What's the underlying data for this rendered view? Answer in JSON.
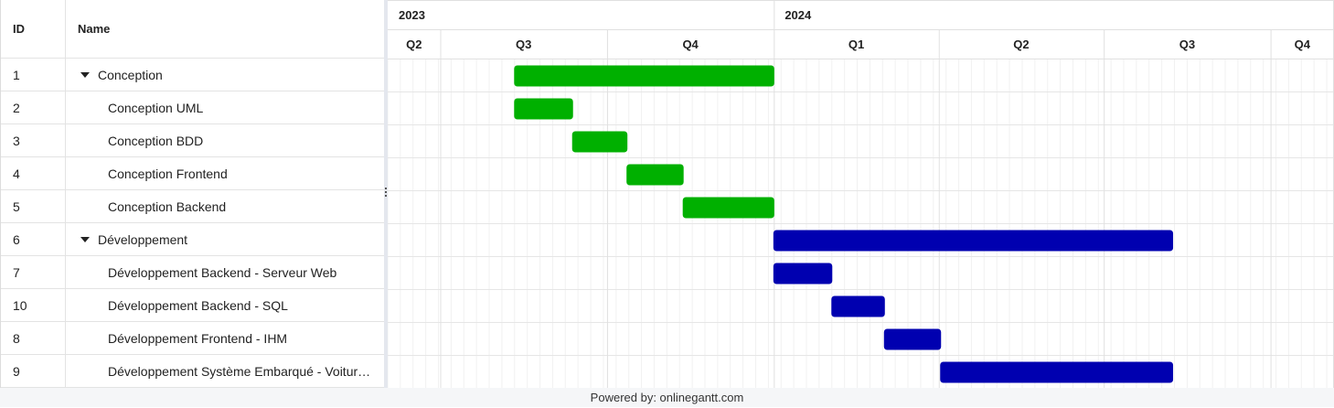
{
  "grid": {
    "columns": {
      "id": "ID",
      "name": "Name"
    },
    "rows": [
      {
        "id": "1",
        "name": "Conception",
        "parent": true
      },
      {
        "id": "2",
        "name": "Conception UML",
        "parent": false
      },
      {
        "id": "3",
        "name": "Conception BDD",
        "parent": false
      },
      {
        "id": "4",
        "name": "Conception Frontend",
        "parent": false
      },
      {
        "id": "5",
        "name": "Conception Backend",
        "parent": false
      },
      {
        "id": "6",
        "name": "Développement",
        "parent": true
      },
      {
        "id": "7",
        "name": "Développement Backend - Serveur Web",
        "parent": false
      },
      {
        "id": "10",
        "name": "Développement Backend - SQL",
        "parent": false
      },
      {
        "id": "8",
        "name": "Développement Frontend - IHM",
        "parent": false
      },
      {
        "id": "9",
        "name": "Développement Système Embarqué - Voitur…",
        "parent": false
      }
    ]
  },
  "timeline": {
    "years": [
      {
        "label": "2023",
        "start": "2023-04-01",
        "end": "2024-01-01"
      },
      {
        "label": "2024",
        "start": "2024-01-01",
        "end": "2024-11-05"
      }
    ],
    "quarters": [
      {
        "label": "Q2",
        "start": "2023-06-02",
        "end": "2023-07-01"
      },
      {
        "label": "Q3",
        "start": "2023-07-01",
        "end": "2023-10-01"
      },
      {
        "label": "Q4",
        "start": "2023-10-01",
        "end": "2024-01-01"
      },
      {
        "label": "Q1",
        "start": "2024-01-01",
        "end": "2024-04-01"
      },
      {
        "label": "Q2",
        "start": "2024-04-01",
        "end": "2024-07-01"
      },
      {
        "label": "Q3",
        "start": "2024-07-01",
        "end": "2024-10-01"
      },
      {
        "label": "Q4",
        "start": "2024-10-01",
        "end": "2024-11-05"
      }
    ],
    "view_start": "2023-06-02",
    "view_end": "2024-11-05"
  },
  "tasks": [
    {
      "row": 0,
      "start": "2023-08-11",
      "end": "2024-01-01",
      "color": "#00b000"
    },
    {
      "row": 1,
      "start": "2023-08-11",
      "end": "2023-09-12",
      "color": "#00b000"
    },
    {
      "row": 2,
      "start": "2023-09-12",
      "end": "2023-10-12",
      "color": "#00b000"
    },
    {
      "row": 3,
      "start": "2023-10-12",
      "end": "2023-11-12",
      "color": "#00b000"
    },
    {
      "row": 4,
      "start": "2023-11-12",
      "end": "2024-01-01",
      "color": "#00b000"
    },
    {
      "row": 5,
      "start": "2024-01-01",
      "end": "2024-08-08",
      "color": "#0000b0"
    },
    {
      "row": 6,
      "start": "2024-01-01",
      "end": "2024-02-02",
      "color": "#0000b0"
    },
    {
      "row": 7,
      "start": "2024-02-02",
      "end": "2024-03-02",
      "color": "#0000b0"
    },
    {
      "row": 8,
      "start": "2024-03-02",
      "end": "2024-04-02",
      "color": "#0000b0"
    },
    {
      "row": 9,
      "start": "2024-04-02",
      "end": "2024-08-08",
      "color": "#0000b0"
    }
  ],
  "footer": {
    "text": "Powered by: onlinegantt.com"
  }
}
